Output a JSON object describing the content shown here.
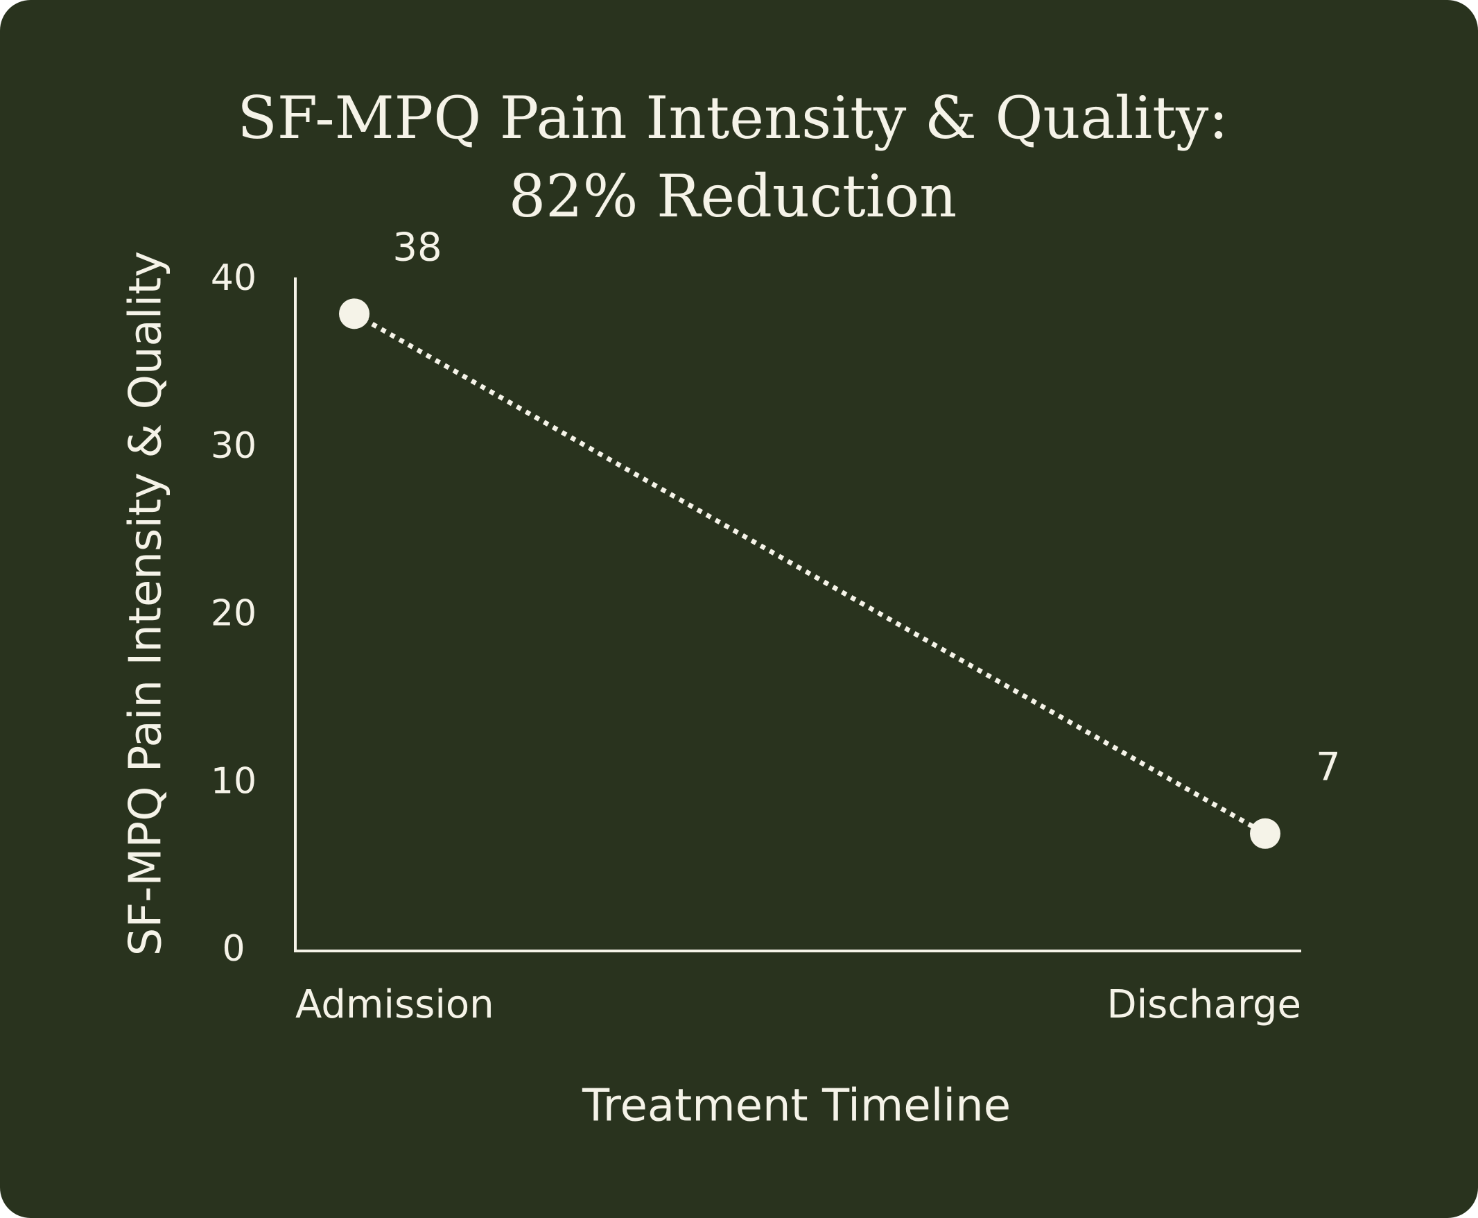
{
  "chart_data": {
    "type": "line",
    "title": [
      "SF-MPQ Pain Intensity & Quality:",
      "82% Reduction"
    ],
    "x_label": "Treatment Timeline",
    "y_label": "SF-MPQ Pain Intensity & Quality",
    "categories": [
      "Admission",
      "Discharge"
    ],
    "series": [
      {
        "name": "SF-MPQ Pain Intensity & Quality",
        "color": "#f5f3e8",
        "values": [
          38,
          7
        ]
      }
    ],
    "ylim": [
      0,
      40
    ],
    "yticks": [
      0,
      10,
      20,
      30,
      40
    ],
    "background": "#29331e",
    "line_style": "dotted",
    "grid": false
  }
}
